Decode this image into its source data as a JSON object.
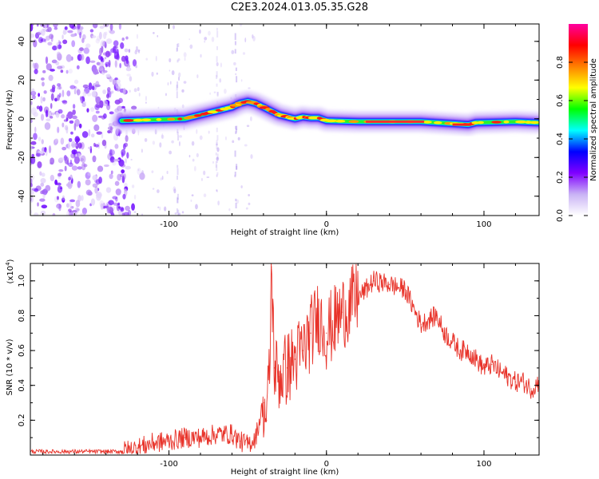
{
  "title": "C2E3.2024.013.05.35.G28",
  "chart_data": [
    {
      "type": "heatmap",
      "xlabel": "Height of straight line (km)",
      "ylabel": "Frequency (Hz)",
      "xlim": [
        -188,
        135
      ],
      "ylim": [
        -50,
        49
      ],
      "x_ticks": [
        -100,
        0,
        100
      ],
      "y_ticks": [
        -40,
        -20,
        0,
        20,
        40
      ],
      "ridge": {
        "x": [
          -130,
          -110,
          -90,
          -80,
          -70,
          -60,
          -55,
          -50,
          -45,
          -40,
          -35,
          -30,
          -25,
          -20,
          -15,
          -10,
          -5,
          0,
          20,
          60,
          80,
          90,
          95,
          120,
          135
        ],
        "y": [
          -1,
          -0.5,
          0,
          2,
          4,
          6,
          8,
          9,
          8,
          6,
          4,
          2,
          1,
          0,
          1,
          0.5,
          0.5,
          -1,
          -1.5,
          -1.5,
          -2.5,
          -3,
          -2,
          -1.5,
          -2
        ]
      },
      "noise_region_x": [
        -188,
        -125
      ],
      "colorbar": {
        "label": "Normalized spectral amplitude",
        "ticks": [
          "0.0",
          "0.2",
          "0.4",
          "0.6",
          "0.8"
        ],
        "range": [
          0,
          1
        ],
        "colormap": [
          "#ffffff",
          "#c9b3f5",
          "#8000ff",
          "#0000ff",
          "#00ffff",
          "#00ff00",
          "#ffff00",
          "#ff8000",
          "#ff0000",
          "#ff00a0"
        ]
      }
    },
    {
      "type": "line",
      "xlabel": "Height of straight line (km)",
      "ylabel": "SNR (10 * v/v)",
      "y_multiplier": "(x10",
      "y_multiplier_exp": "4",
      "y_multiplier_close": ")",
      "xlim": [
        -188,
        135
      ],
      "ylim": [
        0,
        1.1
      ],
      "x_ticks": [
        -100,
        0,
        100
      ],
      "y_ticks": [
        "0.2",
        "0.4",
        "0.6",
        "0.8",
        "1.0"
      ],
      "color": "#e8332a",
      "series": [
        {
          "x": [
            -188,
            -160,
            -140,
            -130,
            -120,
            -110,
            -100,
            -90,
            -80,
            -70,
            -60,
            -55,
            -50,
            -45,
            -40,
            -38,
            -36,
            -35,
            -33,
            -30,
            -25,
            -20,
            -15,
            -10,
            -5,
            0,
            10,
            20,
            30,
            40,
            50,
            55,
            60,
            65,
            70,
            75,
            80,
            85,
            90,
            95,
            100,
            105,
            110,
            115,
            120,
            125,
            130,
            135
          ],
          "y": [
            0.02,
            0.02,
            0.02,
            0.02,
            0.04,
            0.07,
            0.08,
            0.1,
            0.1,
            0.12,
            0.12,
            0.08,
            0.06,
            0.1,
            0.3,
            0.2,
            0.5,
            1.08,
            0.5,
            0.45,
            0.5,
            0.55,
            0.6,
            0.7,
            0.8,
            0.7,
            0.82,
            0.9,
            1.0,
            0.98,
            0.95,
            0.85,
            0.75,
            0.78,
            0.8,
            0.7,
            0.65,
            0.6,
            0.6,
            0.55,
            0.5,
            0.52,
            0.48,
            0.45,
            0.42,
            0.42,
            0.38,
            0.42
          ]
        }
      ]
    }
  ]
}
